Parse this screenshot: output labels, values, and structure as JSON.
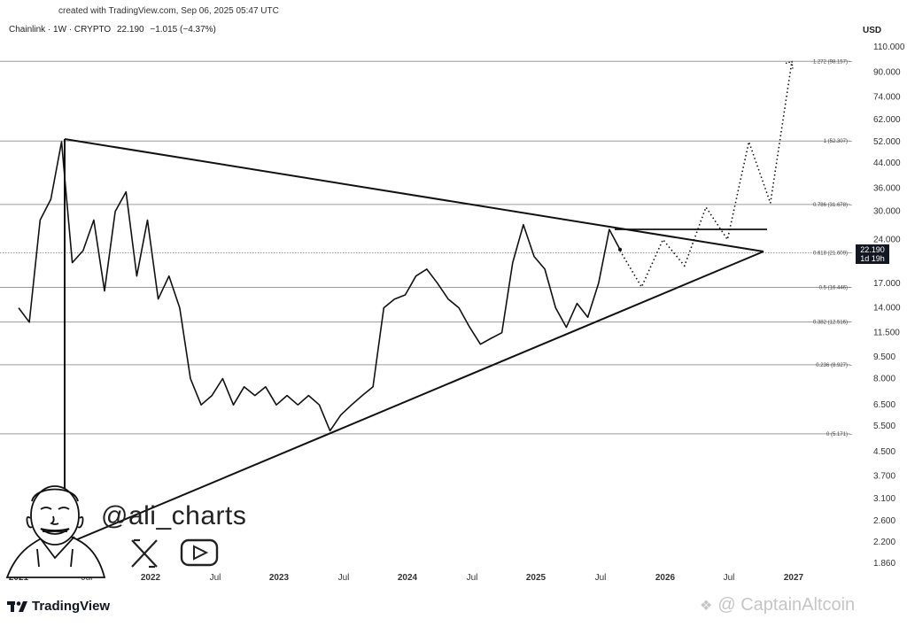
{
  "header": {
    "created_text": "created with TradingView.com, Sep 06, 2025 05:47 UTC",
    "symbol": "Chainlink · 1W · CRYPTO",
    "last": "22.190",
    "change": "−1.015 (−4.37%)",
    "currency": "USD"
  },
  "price_tag": {
    "price": "22.190",
    "countdown": "1d 19h"
  },
  "social": {
    "handle": "@ali_charts",
    "x_icon": "x-logo-icon",
    "youtube_icon": "youtube-icon"
  },
  "brand": {
    "tradingview": "TradingView",
    "watermark": "@ CaptainAltcoin"
  },
  "colors": {
    "line": "#111111",
    "grid": "#b0b0b0",
    "price_tag_bg": "#131722",
    "watermark": "#9a9a9a"
  },
  "chart_data": {
    "type": "line",
    "title": "",
    "y_scale": "log",
    "y_ticks": [
      "110.000",
      "90.000",
      "74.000",
      "62.000",
      "52.000",
      "44.000",
      "36.000",
      "30.000",
      "24.000",
      "17.000",
      "14.000",
      "11.500",
      "9.500",
      "8.000",
      "6.500",
      "5.500",
      "4.500",
      "3.700",
      "3.100",
      "2.600",
      "2.200",
      "1.860"
    ],
    "x_ticks": [
      "2021",
      "Jul",
      "2022",
      "Jul",
      "2023",
      "Jul",
      "2024",
      "Jul",
      "2025",
      "Jul",
      "2026",
      "Jul",
      "2027"
    ],
    "x_tick_bold": [
      true,
      false,
      true,
      false,
      true,
      false,
      true,
      false,
      true,
      false,
      true,
      false,
      true
    ],
    "fib_levels": [
      {
        "label": "1.272 (98.157)",
        "value": 98.157
      },
      {
        "label": "1 (52.307)",
        "value": 52.307
      },
      {
        "label": "0.786 (31.678)",
        "value": 31.678
      },
      {
        "label": "0.618 (21.609)",
        "value": 21.609
      },
      {
        "label": "0.5 (16.446)",
        "value": 16.446
      },
      {
        "label": "0.382 (12.516)",
        "value": 12.516
      },
      {
        "label": "0.236 (8.927)",
        "value": 8.927
      },
      {
        "label": "0 (5.171)",
        "value": 5.171
      }
    ],
    "series": [
      {
        "x": [
          "2021-01",
          "2021-02",
          "2021-03",
          "2021-04",
          "2021-05",
          "2021-06",
          "2021-07",
          "2021-08",
          "2021-09",
          "2021-10",
          "2021-11",
          "2021-12",
          "2022-01",
          "2022-02",
          "2022-03",
          "2022-04",
          "2022-05",
          "2022-06",
          "2022-07",
          "2022-08",
          "2022-09",
          "2022-10",
          "2022-11",
          "2022-12",
          "2023-01",
          "2023-02",
          "2023-03",
          "2023-04",
          "2023-05",
          "2023-06",
          "2023-07",
          "2023-08",
          "2023-09",
          "2023-10",
          "2023-11",
          "2023-12",
          "2024-01",
          "2024-02",
          "2024-03",
          "2024-04",
          "2024-05",
          "2024-06",
          "2024-07",
          "2024-08",
          "2024-09",
          "2024-10",
          "2024-11",
          "2024-12",
          "2025-01",
          "2025-02",
          "2025-03",
          "2025-04",
          "2025-05",
          "2025-06",
          "2025-07",
          "2025-08",
          "2025-09"
        ],
        "y": [
          14.0,
          12.5,
          28.0,
          33.0,
          52.0,
          20.0,
          22.0,
          28.0,
          16.0,
          30.0,
          35.0,
          18.0,
          28.0,
          15.0,
          18.0,
          14.0,
          8.0,
          6.5,
          7.0,
          8.0,
          6.5,
          7.5,
          7.0,
          7.5,
          6.5,
          7.0,
          6.5,
          7.0,
          6.5,
          5.3,
          6.0,
          6.5,
          7.0,
          7.5,
          14.0,
          15.0,
          15.5,
          18.0,
          19.0,
          17.0,
          15.0,
          14.0,
          12.0,
          10.5,
          11.0,
          11.5,
          20.0,
          27.0,
          21.0,
          19.0,
          14.0,
          12.0,
          14.5,
          13.0,
          17.0,
          26.0,
          22.19
        ]
      }
    ],
    "projection": {
      "x": [
        "2025-09",
        "2025-11",
        "2026-01",
        "2026-03",
        "2026-05",
        "2026-07",
        "2026-09",
        "2026-11",
        "2027-01"
      ],
      "y": [
        22.0,
        16.5,
        24.0,
        19.5,
        31.0,
        24.0,
        52.0,
        32.0,
        98.0
      ]
    }
  }
}
